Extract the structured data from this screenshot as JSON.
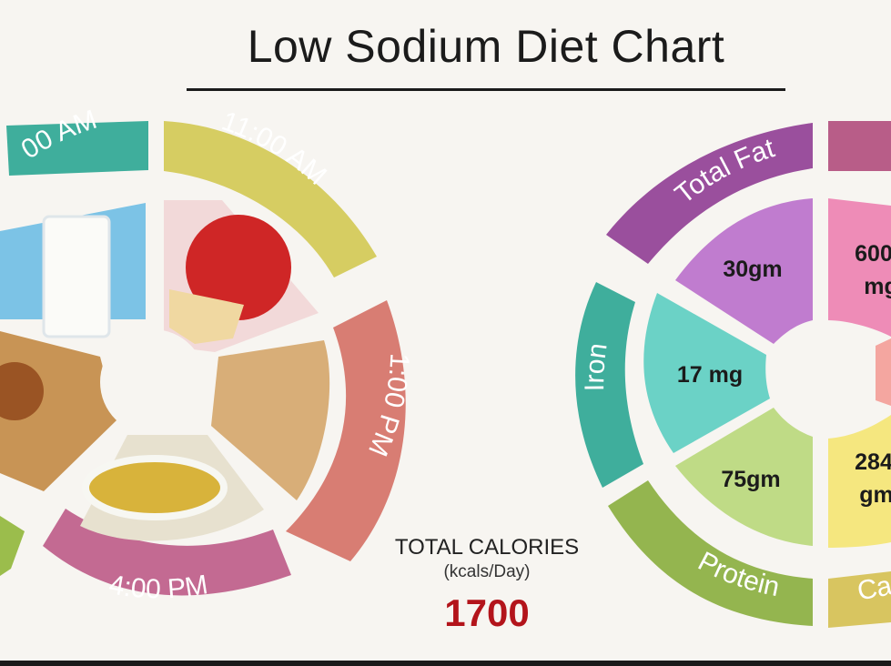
{
  "title": "Low Sodium Diet Chart",
  "meal_clock": {
    "times": [
      {
        "label": "00 AM",
        "color": "#3fae9c"
      },
      {
        "label": "11:00 AM",
        "color": "#d6cd62"
      },
      {
        "label": "1:00 PM",
        "color": "#d87d73"
      },
      {
        "label": "4:00 PM",
        "color": "#c36a92"
      },
      {
        "label": "",
        "color": "#9bbd4c"
      }
    ],
    "foods": [
      {
        "name": "milk",
        "color": "#7cc3e6"
      },
      {
        "name": "apple",
        "color": "#e58a8a"
      },
      {
        "name": "brown-rice",
        "color": "#d8ae78"
      },
      {
        "name": "vegetable-soup",
        "color": "#e7e1cf"
      },
      {
        "name": "chapati-curry",
        "color": "#c89455"
      }
    ]
  },
  "calories": {
    "label": "TOTAL CALORIES",
    "unit": "(kcals/Day)",
    "value": "1700"
  },
  "nutrients": {
    "ring_labels": [
      {
        "label": "Total Fat",
        "color": "#9a4f9d"
      },
      {
        "label": "",
        "color": "#b85d88"
      },
      {
        "label": "Iron",
        "color": "#3fae9c"
      },
      {
        "label": "Protein",
        "color": "#94b54f"
      },
      {
        "label": "Ca",
        "color": "#d8c560"
      }
    ],
    "values": [
      {
        "value": "30gm",
        "color": "#c07ccf"
      },
      {
        "value": "600",
        "value2": "mg",
        "color": "#ee8cb7"
      },
      {
        "value": "17 mg",
        "color": "#6bd2c6"
      },
      {
        "value": "75gm",
        "color": "#bfdb86"
      },
      {
        "value": "284",
        "value2": "gm",
        "color": "#f5e77f"
      }
    ]
  }
}
